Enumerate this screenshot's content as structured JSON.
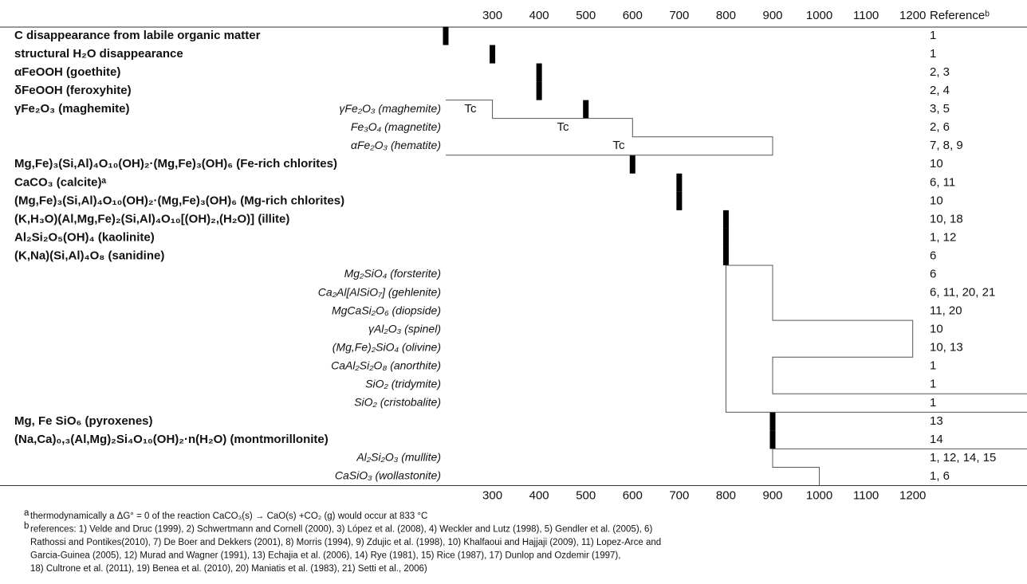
{
  "axis": {
    "ticks": [
      300,
      400,
      500,
      600,
      700,
      800,
      900,
      1000,
      1100,
      1200
    ],
    "xlim": [
      200,
      1250
    ]
  },
  "reference_header": "Referenceᵇ",
  "curie_label": "Tc",
  "rows": [
    {
      "label": "C disappearance from labile organic matter",
      "style": "bold",
      "refs": "1",
      "bar": 200
    },
    {
      "label": "structural H₂O disappearance",
      "style": "bold",
      "refs": "1",
      "bar": 300
    },
    {
      "label": "αFeOOH (goethite)",
      "style": "bold",
      "refs": "2, 3",
      "bar": 400
    },
    {
      "label": "δFeOOH (feroxyhite)",
      "style": "bold",
      "refs": "2, 4",
      "bar": 400
    },
    {
      "label": "γFe₂O₃ (maghemite)",
      "style": "bold",
      "italic_label": "γFe₂O₃ (maghemite)",
      "refs": "3, 5",
      "bar": 500
    },
    {
      "label": "Fe₃O₄ (magnetite)",
      "style": "italic",
      "refs": "2, 6"
    },
    {
      "label": "αFe₂O₃ (hematite)",
      "style": "italic",
      "refs": "7, 8, 9"
    },
    {
      "label": "Mg,Fe)₃(Si,Al)₄O₁₀(OH)₂·(Mg,Fe)₃(OH)₆ (Fe-rich chlorites)",
      "style": "bold",
      "refs": "10",
      "bar": 600
    },
    {
      "label": "CaCO₃ (calcite)ᵃ",
      "style": "bold",
      "refs": "6, 11",
      "bar": 700
    },
    {
      "label": "(Mg,Fe)₃(Si,Al)₄O₁₀(OH)₂·(Mg,Fe)₃(OH)₆ (Mg-rich chlorites)",
      "style": "bold",
      "refs": "10",
      "bar": 700
    },
    {
      "label": "(K,H₃O)(Al,Mg,Fe)₂(Si,Al)₄O₁₀[(OH)₂,(H₂O)] (illite)",
      "style": "bold",
      "refs": "10, 18",
      "bar": 800
    },
    {
      "label": "Al₂Si₂O₅(OH)₄ (kaolinite)",
      "style": "bold",
      "refs": "1, 12",
      "bar": 800
    },
    {
      "label": "(K,Na)(Si,Al)₄O₈ (sanidine)",
      "style": "bold",
      "refs": "6",
      "bar": 800
    },
    {
      "label": "Mg₂SiO₄ (forsterite)",
      "style": "italic",
      "refs": "6"
    },
    {
      "label": "Ca₂Al[AlSiO₇] (gehlenite)",
      "style": "italic",
      "refs": "6, 11, 20, 21"
    },
    {
      "label": "MgCaSi₂O₆ (diopside)",
      "style": "italic",
      "refs": "11, 20"
    },
    {
      "label": "γAl₂O₃ (spinel)",
      "style": "italic",
      "refs": "10"
    },
    {
      "label": "(Mg,Fe)₂SiO₄ (olivine)",
      "style": "italic",
      "refs": "10, 13"
    },
    {
      "label": "CaAl₂Si₂O₈ (anorthite)",
      "style": "italic",
      "refs": "1"
    },
    {
      "label": "SiO₂ (tridymite)",
      "style": "italic",
      "refs": "1"
    },
    {
      "label": "SiO₂ (cristobalite)",
      "style": "italic",
      "refs": "1"
    },
    {
      "label": "Mg, Fe SiO₆ (pyroxenes)",
      "style": "bold",
      "refs": "13",
      "bar": 900
    },
    {
      "label": "(Na,Ca)₀,₃(Al,Mg)₂Si₄O₁₀(OH)₂·n(H₂O) (montmorillonite)",
      "style": "bold",
      "refs": "14",
      "bar": 900
    },
    {
      "label": "Al₂Si₂O₃ (mullite)",
      "style": "italic",
      "refs": "1, 12, 14, 15"
    },
    {
      "label": "CaSiO₃ (wollastonite)",
      "style": "italic",
      "refs": "1, 6"
    }
  ],
  "brackets": [
    {
      "temps": [
        200,
        300,
        300,
        600,
        600,
        900,
        900,
        200
      ],
      "rows": [
        4,
        4,
        5,
        5,
        6,
        6,
        7,
        7
      ],
      "open_right": false
    },
    {
      "temps": [
        800,
        900,
        900,
        1200,
        1200,
        900,
        900
      ],
      "rows": [
        13,
        13,
        16,
        16,
        18,
        18,
        20
      ],
      "open_right": true
    },
    {
      "temps": [
        800,
        800
      ],
      "rows": [
        13,
        21
      ],
      "open_right": true
    },
    {
      "temps": [
        1000,
        1000,
        900,
        900
      ],
      "rows": [
        25,
        24,
        24,
        23
      ],
      "open_right": true
    }
  ],
  "footnotes": [
    {
      "mark": "a",
      "lines": [
        "thermodynamically a ΔG° = 0 of the reaction CaCO₃(s) → CaO(s) +CO₂ (g) would occur at 833 °C"
      ]
    },
    {
      "mark": "b",
      "lines": [
        "references: 1) Velde and Druc (1999), 2) Schwertmann and Cornell (2000), 3) López et al. (2008), 4) Weckler and Lutz (1998), 5) Gendler et al. (2005), 6)",
        "Rathossi and Pontikes(2010), 7) De Boer and Dekkers (2001), 8) Morris (1994), 9) Zdujic et al. (1998), 10) Khalfaoui and Hajjaji (2009), 11) Lopez-Arce and",
        "Garcia-Guinea (2005), 12) Murad and Wagner (1991), 13) Echajia et al. (2006), 14) Rye (1981), 15) Rice (1987), 17) Dunlop and Ozdemir (1997),",
        "18) Cultrone et al. (2011), 19) Benea et al. (2010), 20) Maniatis et al. (1983), 21) Setti et al., 2006)"
      ]
    }
  ]
}
